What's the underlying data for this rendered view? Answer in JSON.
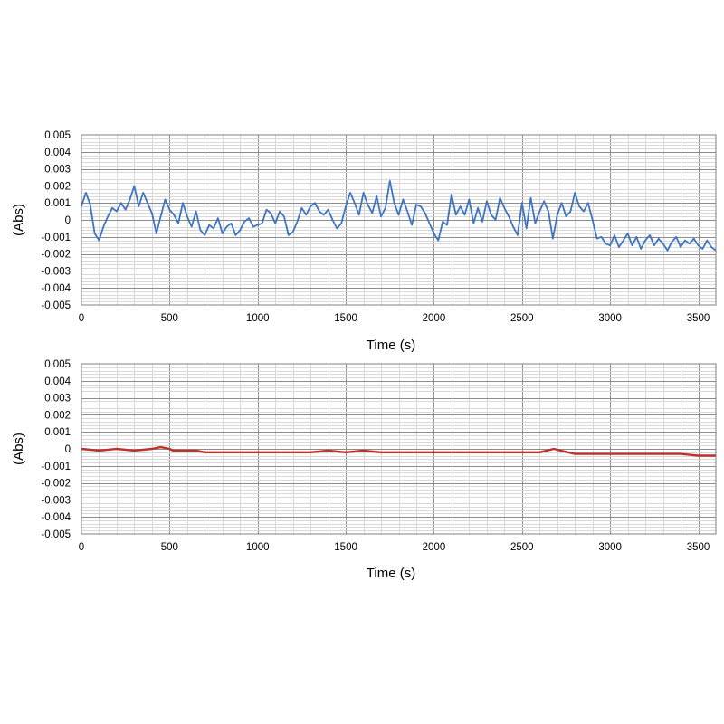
{
  "chart_data": [
    {
      "type": "line",
      "xlabel": "Time (s)",
      "ylabel": "(Abs)",
      "xlim": [
        0,
        3600
      ],
      "ylim": [
        -0.005,
        0.005
      ],
      "x_ticks": [
        "0",
        "500",
        "1000",
        "1500",
        "2000",
        "2500",
        "3000",
        "3500"
      ],
      "y_ticks": [
        "0.005",
        "0.004",
        "0.003",
        "0.002",
        "0.001",
        "0",
        "-0.001",
        "-0.002",
        "-0.003",
        "-0.004",
        "-0.005"
      ],
      "grid": true,
      "legend": "none",
      "series": [
        {
          "color": "#3f74c0",
          "x": [
            0,
            25,
            50,
            75,
            100,
            125,
            150,
            175,
            200,
            225,
            250,
            275,
            300,
            325,
            350,
            375,
            400,
            425,
            450,
            475,
            500,
            525,
            550,
            575,
            600,
            625,
            650,
            675,
            700,
            725,
            750,
            775,
            800,
            825,
            850,
            875,
            900,
            925,
            950,
            975,
            1000,
            1025,
            1050,
            1075,
            1100,
            1125,
            1150,
            1175,
            1200,
            1225,
            1250,
            1275,
            1300,
            1325,
            1350,
            1375,
            1400,
            1425,
            1450,
            1475,
            1500,
            1525,
            1550,
            1575,
            1600,
            1625,
            1650,
            1675,
            1700,
            1725,
            1750,
            1775,
            1800,
            1825,
            1850,
            1875,
            1900,
            1925,
            1950,
            1975,
            2000,
            2025,
            2050,
            2075,
            2100,
            2125,
            2150,
            2175,
            2200,
            2225,
            2250,
            2275,
            2300,
            2325,
            2350,
            2375,
            2400,
            2425,
            2450,
            2475,
            2500,
            2525,
            2550,
            2575,
            2600,
            2625,
            2650,
            2675,
            2700,
            2725,
            2750,
            2775,
            2800,
            2825,
            2850,
            2875,
            2900,
            2925,
            2950,
            2975,
            3000,
            3025,
            3050,
            3075,
            3100,
            3125,
            3150,
            3175,
            3200,
            3225,
            3250,
            3275,
            3300,
            3325,
            3350,
            3375,
            3400,
            3425,
            3450,
            3475,
            3500,
            3525,
            3550,
            3575,
            3600
          ],
          "y": [
            0.0008,
            0.0016,
            0.0009,
            -0.0008,
            -0.0012,
            -0.0004,
            0.0002,
            0.0007,
            0.0005,
            0.001,
            0.0006,
            0.0012,
            0.002,
            0.0008,
            0.0016,
            0.001,
            0.0004,
            -0.0008,
            0.0002,
            0.0012,
            0.0006,
            0.0003,
            -0.0002,
            0.001,
            0.0002,
            -0.0004,
            0.0005,
            -0.0006,
            -0.0009,
            -0.0003,
            -0.0005,
            0.0001,
            -0.0008,
            -0.0004,
            -0.0002,
            -0.0009,
            -0.0006,
            -0.0001,
            0.0001,
            -0.0004,
            -0.0003,
            -0.0002,
            0.0006,
            0.0004,
            -0.0002,
            0.0005,
            0.0002,
            -0.0009,
            -0.0007,
            -0.0001,
            0.0007,
            0.0003,
            0.0008,
            0.001,
            0.0005,
            0.0003,
            0.0006,
            0.0,
            -0.0005,
            -0.0002,
            0.0008,
            0.0016,
            0.001,
            0.0003,
            0.0016,
            0.0009,
            0.0004,
            0.0014,
            0.0002,
            0.0007,
            0.0023,
            0.001,
            0.0003,
            0.0012,
            0.0005,
            -0.0003,
            0.0009,
            0.0008,
            0.0004,
            -0.0002,
            -0.0008,
            -0.0012,
            -0.0001,
            -0.0003,
            0.0015,
            0.0003,
            0.0008,
            0.0003,
            0.0012,
            -0.0002,
            0.0007,
            -0.0001,
            0.0011,
            0.0003,
            0.0,
            0.0013,
            0.0007,
            0.0002,
            -0.0004,
            -0.0009,
            0.001,
            -0.0005,
            0.0013,
            -0.0002,
            0.0005,
            0.0011,
            0.0005,
            -0.0011,
            0.0003,
            0.001,
            0.0002,
            0.0005,
            0.0016,
            0.0008,
            0.0005,
            0.001,
            0.0,
            -0.0011,
            -0.001,
            -0.0014,
            -0.0015,
            -0.0009,
            -0.0016,
            -0.0012,
            -0.0008,
            -0.0015,
            -0.001,
            -0.0017,
            -0.0012,
            -0.0009,
            -0.0015,
            -0.0011,
            -0.0014,
            -0.0018,
            -0.0013,
            -0.001,
            -0.0016,
            -0.0012,
            -0.0014,
            -0.0011,
            -0.0015,
            -0.0017,
            -0.0012,
            -0.0016,
            -0.0018
          ]
        }
      ]
    },
    {
      "type": "line",
      "xlabel": "Time (s)",
      "ylabel": "(Abs)",
      "xlim": [
        0,
        3600
      ],
      "ylim": [
        -0.005,
        0.005
      ],
      "x_ticks": [
        "0",
        "500",
        "1000",
        "1500",
        "2000",
        "2500",
        "3000",
        "3500"
      ],
      "y_ticks": [
        "0.005",
        "0.004",
        "0.003",
        "0.002",
        "0.001",
        "0",
        "-0.001",
        "-0.002",
        "-0.003",
        "-0.004",
        "-0.005"
      ],
      "grid": true,
      "legend": "none",
      "series": [
        {
          "color": "#c0312b",
          "x": [
            0,
            100,
            200,
            300,
            400,
            450,
            500,
            520,
            550,
            600,
            650,
            700,
            750,
            800,
            900,
            1000,
            1100,
            1200,
            1300,
            1400,
            1500,
            1600,
            1700,
            1800,
            1900,
            2000,
            2100,
            2200,
            2300,
            2400,
            2500,
            2600,
            2640,
            2680,
            2720,
            2760,
            2800,
            2900,
            3000,
            3100,
            3200,
            3300,
            3400,
            3500,
            3600
          ],
          "y": [
            0.0,
            -0.0001,
            0.0,
            -0.0001,
            0.0,
            0.0001,
            0.0,
            -0.0001,
            -0.0001,
            -0.0001,
            -0.0001,
            -0.0002,
            -0.0002,
            -0.0002,
            -0.0002,
            -0.0002,
            -0.0002,
            -0.0002,
            -0.0002,
            -0.0001,
            -0.0002,
            -0.0001,
            -0.0002,
            -0.0002,
            -0.0002,
            -0.0002,
            -0.0002,
            -0.0002,
            -0.0002,
            -0.0002,
            -0.0002,
            -0.0002,
            -0.0001,
            0.0,
            -0.0001,
            -0.0002,
            -0.0003,
            -0.0003,
            -0.0003,
            -0.0003,
            -0.0003,
            -0.0003,
            -0.0003,
            -0.0004,
            -0.0004
          ]
        }
      ]
    }
  ]
}
